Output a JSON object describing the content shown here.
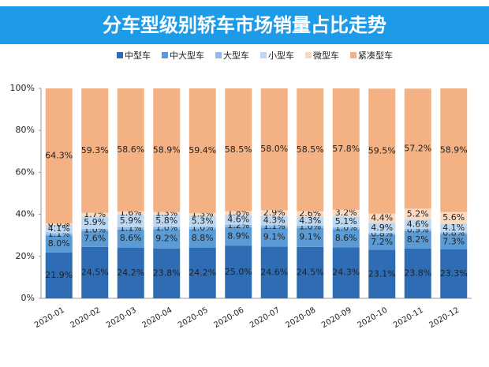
{
  "chart_data": {
    "type": "stacked_bar",
    "title": "分车型级别轿车市场销量占比走势",
    "categories": [
      "2020-01",
      "2020-02",
      "2020-03",
      "2020-04",
      "2020-05",
      "2020-06",
      "2020-07",
      "2020-08",
      "2020-09",
      "2020-10",
      "2020-11",
      "2020-12"
    ],
    "series": [
      {
        "name": "中型车",
        "color": "#2e6db4",
        "values": [
          21.9,
          24.5,
          24.2,
          23.8,
          24.2,
          25.0,
          24.6,
          24.5,
          24.3,
          23.1,
          23.8,
          23.3
        ],
        "value_labels": [
          "21.9%",
          "24.5%",
          "24.2%",
          "23.8%",
          "24.2%",
          "25.0%",
          "24.6%",
          "24.5%",
          "24.3%",
          "23.1%",
          "23.8%",
          "23.3%"
        ]
      },
      {
        "name": "中大型车",
        "color": "#5b9bd5",
        "values": [
          8.0,
          7.6,
          8.6,
          9.2,
          8.8,
          8.9,
          9.1,
          9.1,
          8.6,
          7.2,
          8.2,
          7.3
        ],
        "value_labels": [
          "8.0%",
          "7.6%",
          "8.6%",
          "9.2%",
          "8.8%",
          "8.9%",
          "9.1%",
          "9.1%",
          "8.6%",
          "7.2%",
          "8.2%",
          "7.3%"
        ]
      },
      {
        "name": "大型车",
        "color": "#8fbbe6",
        "values": [
          1.1,
          1.0,
          1.1,
          1.0,
          1.0,
          1.2,
          1.1,
          1.0,
          1.0,
          0.8,
          0.9,
          0.8
        ],
        "value_labels": [
          "1.1%",
          "1.0%",
          "1.1%",
          "1.0%",
          "1.0%",
          "1.2%",
          "1.1%",
          "1.0%",
          "1.0%",
          "0.8%",
          "0.9%",
          "0.8%"
        ]
      },
      {
        "name": "小型车",
        "color": "#bcd7f1",
        "values": [
          4.1,
          5.9,
          5.9,
          5.8,
          5.3,
          4.6,
          4.3,
          4.3,
          5.1,
          4.9,
          4.6,
          4.1
        ],
        "value_labels": [
          "4.1%",
          "5.9%",
          "5.9%",
          "5.8%",
          "5.3%",
          "4.6%",
          "4.3%",
          "4.3%",
          "5.1%",
          "4.9%",
          "4.6%",
          "4.1%"
        ]
      },
      {
        "name": "微型车",
        "color": "#fbd9c0",
        "values": [
          0.6,
          1.7,
          1.6,
          1.3,
          1.3,
          1.8,
          2.9,
          2.6,
          3.2,
          4.4,
          5.2,
          5.6
        ],
        "value_labels": [
          "0.6%",
          "1.7%",
          "1.6%",
          "1.3%",
          "1.3%",
          "1.8%",
          "2.9%",
          "2.6%",
          "3.2%",
          "4.4%",
          "5.2%",
          "5.6%"
        ]
      },
      {
        "name": "紧凑型车",
        "color": "#f4b183",
        "values": [
          64.3,
          59.3,
          58.6,
          58.9,
          59.4,
          58.5,
          58.0,
          58.5,
          57.8,
          59.5,
          57.2,
          58.9
        ],
        "value_labels": [
          "64.3%",
          "59.3%",
          "58.6%",
          "58.9%",
          "59.4%",
          "58.5%",
          "58.0%",
          "58.5%",
          "57.8%",
          "59.5%",
          "57.2%",
          "58.9%"
        ]
      }
    ],
    "ylim": [
      0,
      100
    ],
    "yticks": [
      {
        "value": 0,
        "label": "0%"
      },
      {
        "value": 20,
        "label": "20%"
      },
      {
        "value": 40,
        "label": "40%"
      },
      {
        "value": 60,
        "label": "60%"
      },
      {
        "value": 80,
        "label": "80%"
      },
      {
        "value": 100,
        "label": "100%"
      }
    ],
    "grid": false,
    "legend": "top"
  }
}
